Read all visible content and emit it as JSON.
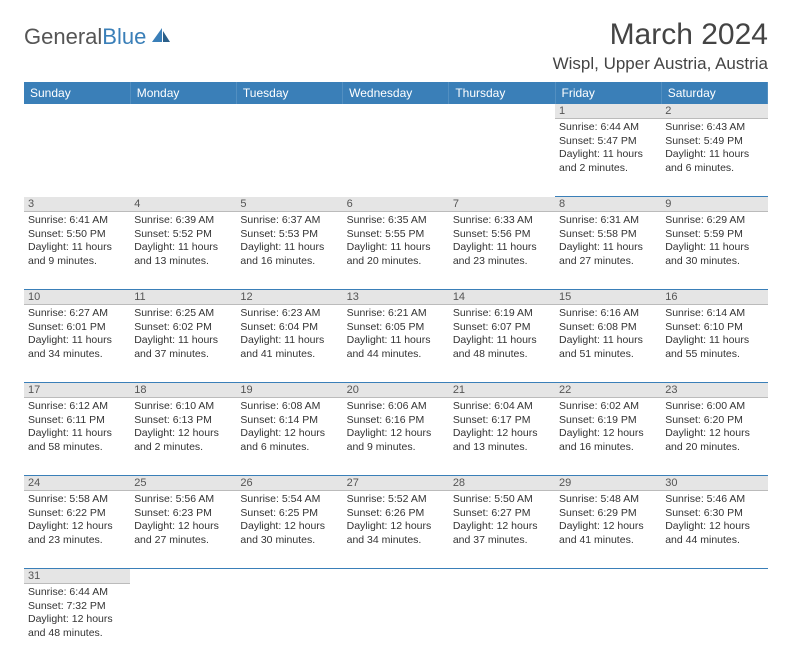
{
  "logo": {
    "general": "General",
    "blue": "Blue"
  },
  "title": "March 2024",
  "location": "Wispl, Upper Austria, Austria",
  "header_bg": "#3a7fb8",
  "day_headers": [
    "Sunday",
    "Monday",
    "Tuesday",
    "Wednesday",
    "Thursday",
    "Friday",
    "Saturday"
  ],
  "weeks": [
    {
      "nums": [
        "",
        "",
        "",
        "",
        "",
        "1",
        "2"
      ],
      "cells": [
        null,
        null,
        null,
        null,
        null,
        {
          "sunrise": "Sunrise: 6:44 AM",
          "sunset": "Sunset: 5:47 PM",
          "day1": "Daylight: 11 hours",
          "day2": "and 2 minutes."
        },
        {
          "sunrise": "Sunrise: 6:43 AM",
          "sunset": "Sunset: 5:49 PM",
          "day1": "Daylight: 11 hours",
          "day2": "and 6 minutes."
        }
      ]
    },
    {
      "nums": [
        "3",
        "4",
        "5",
        "6",
        "7",
        "8",
        "9"
      ],
      "cells": [
        {
          "sunrise": "Sunrise: 6:41 AM",
          "sunset": "Sunset: 5:50 PM",
          "day1": "Daylight: 11 hours",
          "day2": "and 9 minutes."
        },
        {
          "sunrise": "Sunrise: 6:39 AM",
          "sunset": "Sunset: 5:52 PM",
          "day1": "Daylight: 11 hours",
          "day2": "and 13 minutes."
        },
        {
          "sunrise": "Sunrise: 6:37 AM",
          "sunset": "Sunset: 5:53 PM",
          "day1": "Daylight: 11 hours",
          "day2": "and 16 minutes."
        },
        {
          "sunrise": "Sunrise: 6:35 AM",
          "sunset": "Sunset: 5:55 PM",
          "day1": "Daylight: 11 hours",
          "day2": "and 20 minutes."
        },
        {
          "sunrise": "Sunrise: 6:33 AM",
          "sunset": "Sunset: 5:56 PM",
          "day1": "Daylight: 11 hours",
          "day2": "and 23 minutes."
        },
        {
          "sunrise": "Sunrise: 6:31 AM",
          "sunset": "Sunset: 5:58 PM",
          "day1": "Daylight: 11 hours",
          "day2": "and 27 minutes."
        },
        {
          "sunrise": "Sunrise: 6:29 AM",
          "sunset": "Sunset: 5:59 PM",
          "day1": "Daylight: 11 hours",
          "day2": "and 30 minutes."
        }
      ]
    },
    {
      "nums": [
        "10",
        "11",
        "12",
        "13",
        "14",
        "15",
        "16"
      ],
      "cells": [
        {
          "sunrise": "Sunrise: 6:27 AM",
          "sunset": "Sunset: 6:01 PM",
          "day1": "Daylight: 11 hours",
          "day2": "and 34 minutes."
        },
        {
          "sunrise": "Sunrise: 6:25 AM",
          "sunset": "Sunset: 6:02 PM",
          "day1": "Daylight: 11 hours",
          "day2": "and 37 minutes."
        },
        {
          "sunrise": "Sunrise: 6:23 AM",
          "sunset": "Sunset: 6:04 PM",
          "day1": "Daylight: 11 hours",
          "day2": "and 41 minutes."
        },
        {
          "sunrise": "Sunrise: 6:21 AM",
          "sunset": "Sunset: 6:05 PM",
          "day1": "Daylight: 11 hours",
          "day2": "and 44 minutes."
        },
        {
          "sunrise": "Sunrise: 6:19 AM",
          "sunset": "Sunset: 6:07 PM",
          "day1": "Daylight: 11 hours",
          "day2": "and 48 minutes."
        },
        {
          "sunrise": "Sunrise: 6:16 AM",
          "sunset": "Sunset: 6:08 PM",
          "day1": "Daylight: 11 hours",
          "day2": "and 51 minutes."
        },
        {
          "sunrise": "Sunrise: 6:14 AM",
          "sunset": "Sunset: 6:10 PM",
          "day1": "Daylight: 11 hours",
          "day2": "and 55 minutes."
        }
      ]
    },
    {
      "nums": [
        "17",
        "18",
        "19",
        "20",
        "21",
        "22",
        "23"
      ],
      "cells": [
        {
          "sunrise": "Sunrise: 6:12 AM",
          "sunset": "Sunset: 6:11 PM",
          "day1": "Daylight: 11 hours",
          "day2": "and 58 minutes."
        },
        {
          "sunrise": "Sunrise: 6:10 AM",
          "sunset": "Sunset: 6:13 PM",
          "day1": "Daylight: 12 hours",
          "day2": "and 2 minutes."
        },
        {
          "sunrise": "Sunrise: 6:08 AM",
          "sunset": "Sunset: 6:14 PM",
          "day1": "Daylight: 12 hours",
          "day2": "and 6 minutes."
        },
        {
          "sunrise": "Sunrise: 6:06 AM",
          "sunset": "Sunset: 6:16 PM",
          "day1": "Daylight: 12 hours",
          "day2": "and 9 minutes."
        },
        {
          "sunrise": "Sunrise: 6:04 AM",
          "sunset": "Sunset: 6:17 PM",
          "day1": "Daylight: 12 hours",
          "day2": "and 13 minutes."
        },
        {
          "sunrise": "Sunrise: 6:02 AM",
          "sunset": "Sunset: 6:19 PM",
          "day1": "Daylight: 12 hours",
          "day2": "and 16 minutes."
        },
        {
          "sunrise": "Sunrise: 6:00 AM",
          "sunset": "Sunset: 6:20 PM",
          "day1": "Daylight: 12 hours",
          "day2": "and 20 minutes."
        }
      ]
    },
    {
      "nums": [
        "24",
        "25",
        "26",
        "27",
        "28",
        "29",
        "30"
      ],
      "cells": [
        {
          "sunrise": "Sunrise: 5:58 AM",
          "sunset": "Sunset: 6:22 PM",
          "day1": "Daylight: 12 hours",
          "day2": "and 23 minutes."
        },
        {
          "sunrise": "Sunrise: 5:56 AM",
          "sunset": "Sunset: 6:23 PM",
          "day1": "Daylight: 12 hours",
          "day2": "and 27 minutes."
        },
        {
          "sunrise": "Sunrise: 5:54 AM",
          "sunset": "Sunset: 6:25 PM",
          "day1": "Daylight: 12 hours",
          "day2": "and 30 minutes."
        },
        {
          "sunrise": "Sunrise: 5:52 AM",
          "sunset": "Sunset: 6:26 PM",
          "day1": "Daylight: 12 hours",
          "day2": "and 34 minutes."
        },
        {
          "sunrise": "Sunrise: 5:50 AM",
          "sunset": "Sunset: 6:27 PM",
          "day1": "Daylight: 12 hours",
          "day2": "and 37 minutes."
        },
        {
          "sunrise": "Sunrise: 5:48 AM",
          "sunset": "Sunset: 6:29 PM",
          "day1": "Daylight: 12 hours",
          "day2": "and 41 minutes."
        },
        {
          "sunrise": "Sunrise: 5:46 AM",
          "sunset": "Sunset: 6:30 PM",
          "day1": "Daylight: 12 hours",
          "day2": "and 44 minutes."
        }
      ]
    },
    {
      "nums": [
        "31",
        "",
        "",
        "",
        "",
        "",
        ""
      ],
      "cells": [
        {
          "sunrise": "Sunrise: 6:44 AM",
          "sunset": "Sunset: 7:32 PM",
          "day1": "Daylight: 12 hours",
          "day2": "and 48 minutes."
        },
        null,
        null,
        null,
        null,
        null,
        null
      ]
    }
  ]
}
